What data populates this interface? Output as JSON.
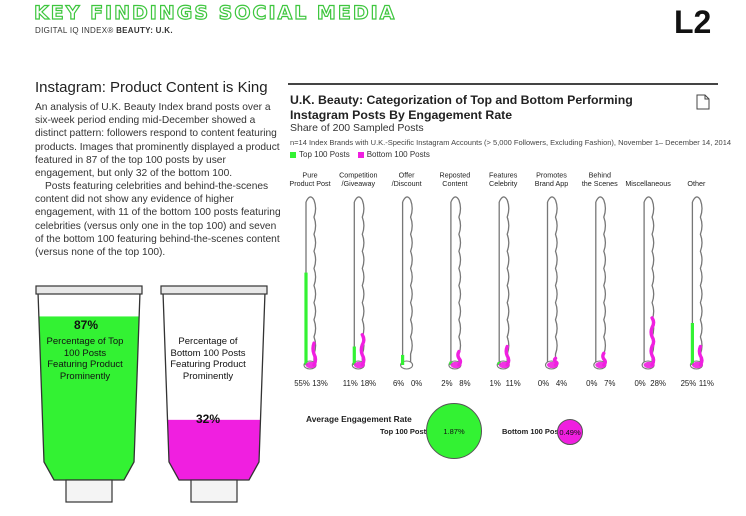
{
  "header": {
    "title": "KEY FINDINGS SOCIAL MEDIA",
    "sub_prefix": "DIGITAL IQ INDEX® ",
    "sub_bold": "BEAUTY: U.K.",
    "logo_text": "L2"
  },
  "left": {
    "title": "Instagram: Product Content is King",
    "para1": "An analysis of U.K. Beauty Index brand posts over a six-week period ending mid-December showed a distinct pattern: followers respond to content featuring products. Images that prominently displayed a product featured in 87 of the top 100 posts by user engagement, but only 32 of the bottom 100.",
    "para2": "Posts featuring celebrities and behind-the-scenes content did not show any evidence of higher engagement, with 11 of the bottom 100 posts featuring celebrities (versus only one in the top 100) and seven of the bottom 100 featuring behind-the-scenes content (versus none of the top 100).",
    "tube_top": {
      "percent": "87%",
      "fill_fraction": 0.87,
      "label": "Percentage of Top 100 Posts Featuring Product Prominently"
    },
    "tube_bottom": {
      "percent": "32%",
      "fill_fraction": 0.32,
      "label": "Percentage of Bottom 100 Posts Featuring Product Prominently"
    }
  },
  "chart_data": {
    "type": "bar",
    "title": "U.K. Beauty: Categorization of Top and Bottom Performing Instagram Posts By Engagement Rate",
    "subtitle": "Share of 200 Sampled Posts",
    "note": "n=14 Index Brands with U.K.-Specific Instagram Accounts (> 5,000 Followers, Excluding Fashion), November 1– December 14, 2014",
    "categories": [
      [
        "Pure",
        "Product Post"
      ],
      [
        "Competition",
        "/Giveaway"
      ],
      [
        "Offer",
        "/Discount"
      ],
      [
        "Reposted",
        "Content"
      ],
      [
        "Features",
        "Celebrity"
      ],
      [
        "Promotes",
        "Brand App"
      ],
      [
        "Behind",
        "the Scenes"
      ],
      [
        "Miscellaneous"
      ],
      [
        "Other"
      ]
    ],
    "series": [
      {
        "name": "Top 100 Posts",
        "color": "#33f233",
        "values": [
          55,
          11,
          6,
          2,
          1,
          0,
          0,
          0,
          25
        ],
        "labels": [
          "55%",
          "11%",
          "6%",
          "2%",
          "1%",
          "0%",
          "0%",
          "0%",
          "25%"
        ]
      },
      {
        "name": "Bottom 100 Posts",
        "color": "#f01fe0",
        "values": [
          13,
          18,
          0,
          8,
          11,
          4,
          7,
          28,
          11
        ],
        "labels": [
          "13%",
          "18%",
          "0%",
          "8%",
          "11%",
          "4%",
          "7%",
          "28%",
          "11%"
        ]
      }
    ],
    "ylim": [
      0,
      100
    ],
    "engagement": {
      "label": "Average Engagement Rate",
      "top_label": "Top 100 Posts",
      "top_value": "1.87%",
      "bottom_label": "Bottom 100 Posts",
      "bottom_value": "0.49%"
    }
  }
}
